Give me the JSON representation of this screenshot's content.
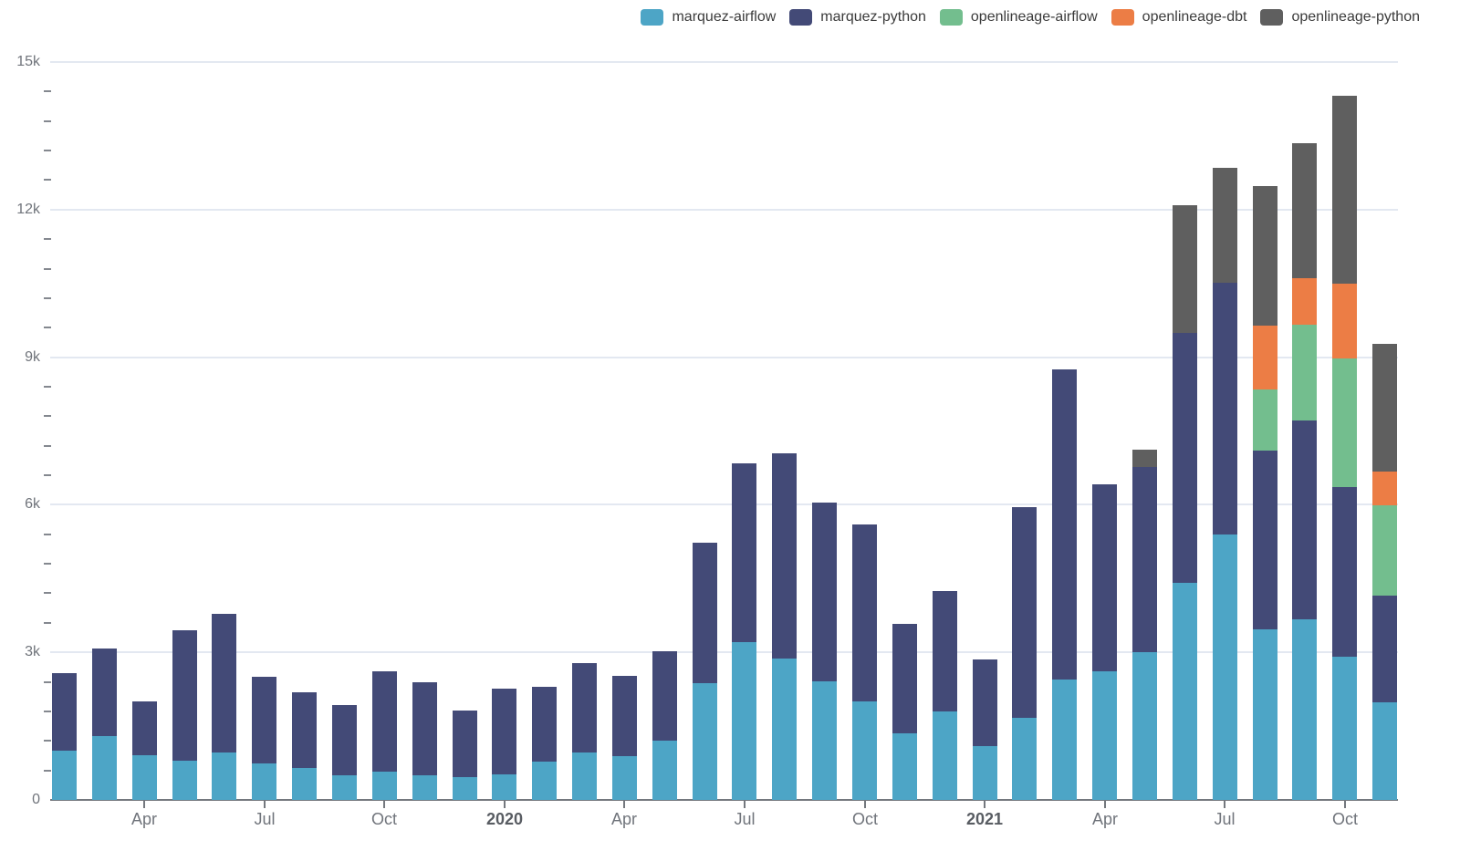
{
  "legend": {
    "items": [
      {
        "label": "marquez-airflow",
        "color": "#4da5c6"
      },
      {
        "label": "marquez-python",
        "color": "#434a77"
      },
      {
        "label": "openlineage-airflow",
        "color": "#73be8e"
      },
      {
        "label": "openlineage-dbt",
        "color": "#ec7d45"
      },
      {
        "label": "openlineage-python",
        "color": "#5f5f5f"
      }
    ]
  },
  "chart_data": {
    "type": "bar",
    "stacked": true,
    "title": "",
    "xlabel": "",
    "ylabel": "",
    "grid": true,
    "legend_position": "top-right",
    "ylim": [
      0,
      15000
    ],
    "y_ticks": [
      0,
      3000,
      6000,
      9000,
      12000,
      15000
    ],
    "y_tick_labels": [
      "0",
      "3k",
      "6k",
      "9k",
      "12k",
      "15k"
    ],
    "y_minor_interval": 600,
    "x": [
      "2019-02",
      "2019-03",
      "2019-04",
      "2019-05",
      "2019-06",
      "2019-07",
      "2019-08",
      "2019-09",
      "2019-10",
      "2019-11",
      "2019-12",
      "2020-01",
      "2020-02",
      "2020-03",
      "2020-04",
      "2020-05",
      "2020-06",
      "2020-07",
      "2020-08",
      "2020-09",
      "2020-10",
      "2020-11",
      "2020-12",
      "2021-01",
      "2021-02",
      "2021-03",
      "2021-04",
      "2021-05",
      "2021-06",
      "2021-07",
      "2021-08",
      "2021-09",
      "2021-10",
      "2021-11"
    ],
    "x_ticks": [
      {
        "index": 2,
        "label": "Apr",
        "bold": false
      },
      {
        "index": 5,
        "label": "Jul",
        "bold": false
      },
      {
        "index": 8,
        "label": "Oct",
        "bold": false
      },
      {
        "index": 11,
        "label": "2020",
        "bold": true
      },
      {
        "index": 14,
        "label": "Apr",
        "bold": false
      },
      {
        "index": 17,
        "label": "Jul",
        "bold": false
      },
      {
        "index": 20,
        "label": "Oct",
        "bold": false
      },
      {
        "index": 23,
        "label": "2021",
        "bold": true
      },
      {
        "index": 26,
        "label": "Apr",
        "bold": false
      },
      {
        "index": 29,
        "label": "Jul",
        "bold": false
      },
      {
        "index": 32,
        "label": "Oct",
        "bold": false
      }
    ],
    "series": [
      {
        "name": "marquez-airflow",
        "color": "#4da5c6",
        "values": [
          1010,
          1290,
          910,
          805,
          965,
          740,
          640,
          495,
          575,
          495,
          455,
          510,
          780,
          965,
          895,
          1205,
          2380,
          3200,
          2870,
          2405,
          2010,
          1350,
          1795,
          1100,
          1660,
          2440,
          2610,
          3000,
          4405,
          5395,
          3475,
          3680,
          2920,
          1980
        ]
      },
      {
        "name": "marquez-python",
        "color": "#434a77",
        "values": [
          1570,
          1790,
          1100,
          2645,
          2810,
          1760,
          1540,
          1430,
          2040,
          1895,
          1355,
          1760,
          1510,
          1815,
          1625,
          1810,
          2840,
          3635,
          4170,
          3645,
          3585,
          2230,
          2460,
          1755,
          4290,
          6305,
          3800,
          3770,
          5095,
          5125,
          3635,
          4030,
          3435,
          2175
        ]
      },
      {
        "name": "openlineage-airflow",
        "color": "#73be8e",
        "values": [
          0,
          0,
          0,
          0,
          0,
          0,
          0,
          0,
          0,
          0,
          0,
          0,
          0,
          0,
          0,
          0,
          0,
          0,
          0,
          0,
          0,
          0,
          0,
          0,
          0,
          0,
          0,
          0,
          0,
          0,
          1225,
          1955,
          2620,
          1825
        ]
      },
      {
        "name": "openlineage-dbt",
        "color": "#ec7d45",
        "values": [
          0,
          0,
          0,
          0,
          0,
          0,
          0,
          0,
          0,
          0,
          0,
          0,
          0,
          0,
          0,
          0,
          0,
          0,
          0,
          0,
          0,
          0,
          0,
          0,
          0,
          0,
          0,
          0,
          0,
          0,
          1315,
          945,
          1515,
          700
        ]
      },
      {
        "name": "openlineage-python",
        "color": "#5f5f5f",
        "values": [
          0,
          0,
          0,
          0,
          0,
          0,
          0,
          0,
          0,
          0,
          0,
          0,
          0,
          0,
          0,
          0,
          0,
          0,
          0,
          0,
          0,
          0,
          0,
          0,
          0,
          0,
          0,
          350,
          2580,
          2335,
          2830,
          2745,
          3820,
          2595
        ]
      }
    ]
  }
}
